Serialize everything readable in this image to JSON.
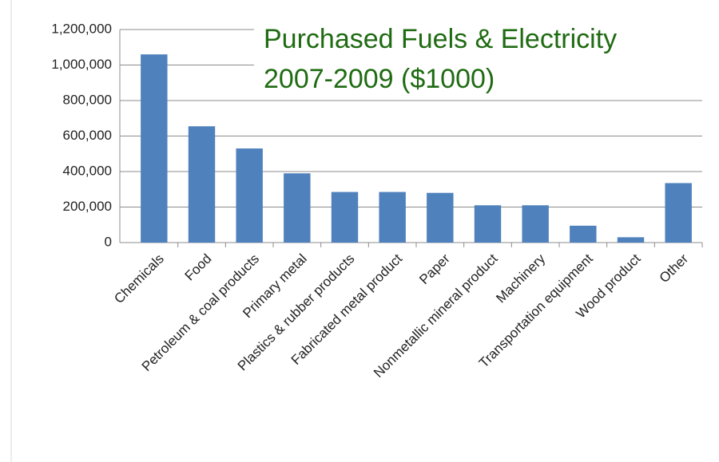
{
  "chart_data": {
    "type": "bar",
    "title": "Purchased Fuels & Electricity",
    "subtitle": "2007-2009 ($1000)",
    "categories": [
      "Chemicals",
      "Food",
      "Petroleum & coal products",
      "Primary metal",
      "Plastics & rubber products",
      "Fabricated metal product",
      "Paper",
      "Nonmetallic mineral product",
      "Machinery",
      "Transportation equipment",
      "Wood product",
      "Other"
    ],
    "values": [
      1060000,
      655000,
      530000,
      390000,
      285000,
      285000,
      280000,
      210000,
      210000,
      95000,
      30000,
      335000
    ],
    "color": "#4f81bd",
    "ylim": [
      0,
      1200000
    ],
    "yticks": [
      0,
      {
        "value": 200000,
        "label": "200,000"
      },
      {
        "value": 400000,
        "label": "400,000"
      },
      {
        "value": 600000,
        "label": "600,000"
      },
      {
        "value": 800000,
        "label": "800,000"
      },
      {
        "value": 1000000,
        "label": "1,000,000"
      },
      {
        "value": 1200000,
        "label": "1,200,000"
      }
    ],
    "grid": true
  }
}
